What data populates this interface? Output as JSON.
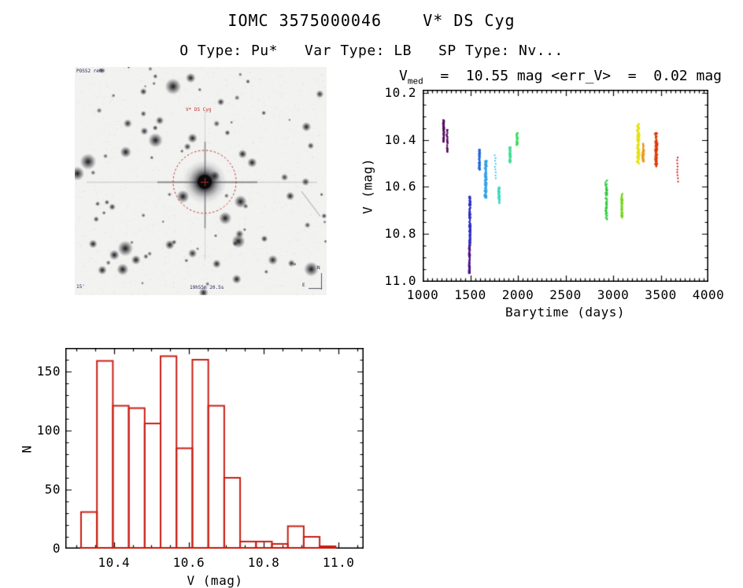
{
  "page": {
    "title": "IOMC 3575000046    V* DS Cyg",
    "subtitle": "O Type: Pu*   Var Type: LB   SP Type: Nv..."
  },
  "star_chart": {
    "survey_label": "POSS2 red",
    "target_label": "V* DS Cyg",
    "scale_label": "15'",
    "coords_label": "19h55m 20.5s",
    "compass_north": "N",
    "compass_east": "E",
    "marker_color": "#c23028",
    "seed": 7,
    "num_stars": 95
  },
  "chart_data": [
    {
      "type": "scatter",
      "title_parts": {
        "v": "V",
        "sub": "med",
        "rest": "  =  10.55 mag <err_V>  =  0.02 mag"
      },
      "xlabel": "Barytime (days)",
      "ylabel": "V (mag)",
      "xlim": [
        1000,
        4000
      ],
      "ylim": [
        10.187,
        11.003
      ],
      "xticks": [
        1000,
        1500,
        2000,
        2500,
        3000,
        3500,
        4000
      ],
      "xtick_labels": [
        "1000",
        "1500",
        "2000",
        "2500",
        "3000",
        "3500",
        "4000"
      ],
      "yticks": [
        10.2,
        10.4,
        10.6,
        10.8,
        11.0
      ],
      "ytick_labels": [
        "10.2",
        "10.4",
        "10.6",
        "10.8",
        "11.0"
      ],
      "x_minor_step": 50,
      "y_minor_step": 0.05,
      "clusters": [
        {
          "t": 1220,
          "v_min": 10.315,
          "v_max": 10.41,
          "dt": 18,
          "color": "#55095e",
          "style": "dense"
        },
        {
          "t": 1258,
          "v_min": 10.355,
          "v_max": 10.452,
          "dt": 14,
          "color": "#55095e",
          "style": "semi"
        },
        {
          "t": 1496,
          "v_min": 10.64,
          "v_max": 10.85,
          "dt": 22,
          "color": "#2a2cc8",
          "style": "dense"
        },
        {
          "t": 1491,
          "v_min": 10.848,
          "v_max": 10.968,
          "dt": 18,
          "color": "#4a0f8e",
          "style": "dense"
        },
        {
          "t": 1596,
          "v_min": 10.44,
          "v_max": 10.528,
          "dt": 20,
          "color": "#1c64dc",
          "style": "dense"
        },
        {
          "t": 1662,
          "v_min": 10.487,
          "v_max": 10.648,
          "dt": 32,
          "color": "#2f9fe8",
          "style": "dense"
        },
        {
          "t": 1762,
          "v_min": 10.465,
          "v_max": 10.562,
          "dt": 8,
          "color": "#38c4ee",
          "style": "dots"
        },
        {
          "t": 1802,
          "v_min": 10.601,
          "v_max": 10.672,
          "dt": 22,
          "color": "#3ad8c4",
          "style": "dense"
        },
        {
          "t": 1918,
          "v_min": 10.43,
          "v_max": 10.5,
          "dt": 24,
          "color": "#3edc96",
          "style": "dense"
        },
        {
          "t": 1992,
          "v_min": 10.37,
          "v_max": 10.422,
          "dt": 22,
          "color": "#3cdc5a",
          "style": "dense"
        },
        {
          "t": 2928,
          "v_min": 10.572,
          "v_max": 10.74,
          "dt": 28,
          "color": "#2ecb3c",
          "style": "semi"
        },
        {
          "t": 3092,
          "v_min": 10.625,
          "v_max": 10.732,
          "dt": 22,
          "color": "#78d522",
          "style": "dense"
        },
        {
          "t": 3264,
          "v_min": 10.33,
          "v_max": 10.502,
          "dt": 36,
          "color": "#e2e214",
          "style": "dense"
        },
        {
          "t": 3316,
          "v_min": 10.408,
          "v_max": 10.502,
          "dt": 24,
          "color": "#e89510",
          "style": "semi"
        },
        {
          "t": 3452,
          "v_min": 10.368,
          "v_max": 10.514,
          "dt": 34,
          "color": "#dc3a06",
          "style": "dense"
        },
        {
          "t": 3676,
          "v_min": 10.475,
          "v_max": 10.576,
          "dt": 8,
          "color": "#cc1207",
          "style": "dots"
        }
      ]
    },
    {
      "type": "histogram",
      "xlabel": "V (mag)",
      "ylabel": "N",
      "xlim": [
        10.27,
        11.067
      ],
      "ylim": [
        170,
        0
      ],
      "xticks": [
        10.4,
        10.6,
        10.8,
        11.0
      ],
      "xtick_labels": [
        "10.4",
        "10.6",
        "10.8",
        "11.0"
      ],
      "yticks": [
        0,
        50,
        100,
        150
      ],
      "ytick_labels": [
        "0",
        "50",
        "100",
        "150"
      ],
      "x_minor_step": 0.05,
      "y_minor_step": 10,
      "bin_start": 10.312,
      "bin_width": 0.0425,
      "counts": [
        31,
        159,
        121,
        119,
        106,
        163,
        85,
        160,
        121,
        60,
        6,
        6,
        4,
        19,
        10,
        2
      ],
      "color": "#c81e14"
    }
  ]
}
